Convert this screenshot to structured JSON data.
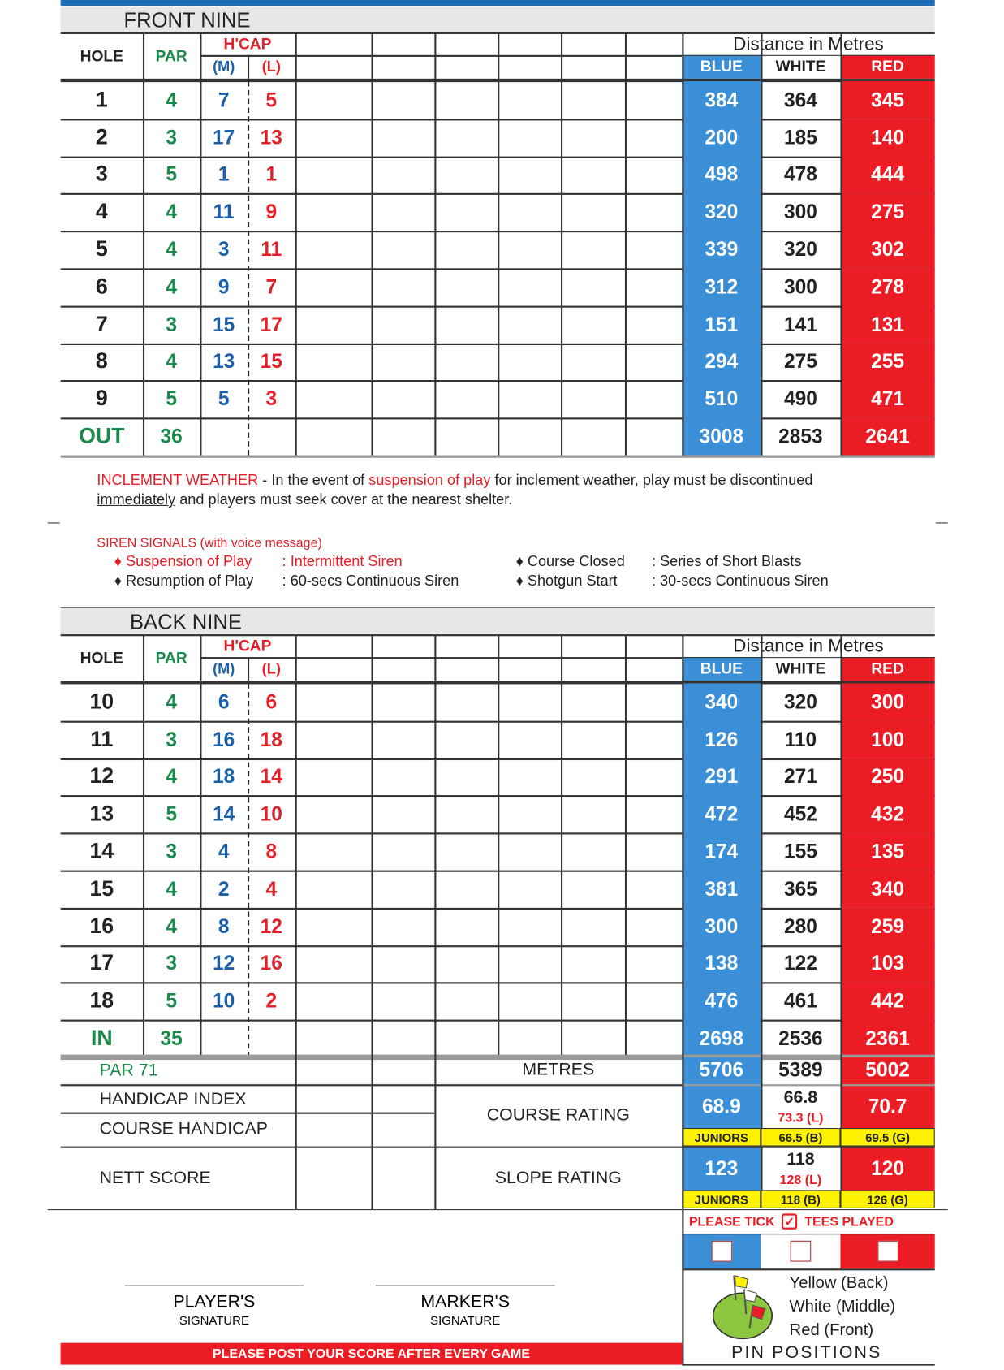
{
  "colors": {
    "blue": "#3a8fd6",
    "red": "#ec1c24",
    "yellow": "#fff200",
    "green": "#1a8a4a",
    "hcap_m": "#1b5fa8",
    "hcap_l": "#e3202a",
    "band": "#e6e7e8",
    "top_bar": "#1a6fb8"
  },
  "headers": {
    "hole": "HOLE",
    "par": "PAR",
    "hcap": "H'CAP",
    "m": "(M)",
    "l": "(L)",
    "distance": "Distance in Metres",
    "blue": "BLUE",
    "white": "WHITE",
    "red": "RED"
  },
  "front": {
    "title": "FRONT NINE",
    "rows": [
      [
        "1",
        "4",
        "7",
        "5",
        "384",
        "364",
        "345"
      ],
      [
        "2",
        "3",
        "17",
        "13",
        "200",
        "185",
        "140"
      ],
      [
        "3",
        "5",
        "1",
        "1",
        "498",
        "478",
        "444"
      ],
      [
        "4",
        "4",
        "11",
        "9",
        "320",
        "300",
        "275"
      ],
      [
        "5",
        "4",
        "3",
        "11",
        "339",
        "320",
        "302"
      ],
      [
        "6",
        "4",
        "9",
        "7",
        "312",
        "300",
        "278"
      ],
      [
        "7",
        "3",
        "15",
        "17",
        "151",
        "141",
        "131"
      ],
      [
        "8",
        "4",
        "13",
        "15",
        "294",
        "275",
        "255"
      ],
      [
        "9",
        "5",
        "5",
        "3",
        "510",
        "490",
        "471"
      ]
    ],
    "total": [
      "OUT",
      "36",
      "",
      "",
      "3008",
      "2853",
      "2641"
    ]
  },
  "weather": {
    "label": "INCLEMENT WEATHER",
    "t1": " - In the event of ",
    "t2": "suspension of play",
    "t3": " for inclement weather, play must be discontinued",
    "t4": "immediately",
    "t5": " and players must seek cover at the nearest shelter."
  },
  "siren": {
    "title": "SIREN SIGNALS (with voice message)",
    "items": [
      {
        "name": "♦ Suspension of Play",
        "desc": ": Intermittent Siren",
        "red": true
      },
      {
        "name": "♦ Resumption of Play",
        "desc": ": 60-secs Continuous Siren",
        "red": false
      },
      {
        "name": "♦ Course Closed",
        "desc": ": Series of Short Blasts",
        "red": false
      },
      {
        "name": "♦ Shotgun Start",
        "desc": ": 30-secs Continuous Siren",
        "red": false
      }
    ]
  },
  "back": {
    "title": "BACK NINE",
    "rows": [
      [
        "10",
        "4",
        "6",
        "6",
        "340",
        "320",
        "300"
      ],
      [
        "11",
        "3",
        "16",
        "18",
        "126",
        "110",
        "100"
      ],
      [
        "12",
        "4",
        "18",
        "14",
        "291",
        "271",
        "250"
      ],
      [
        "13",
        "5",
        "14",
        "10",
        "472",
        "452",
        "432"
      ],
      [
        "14",
        "3",
        "4",
        "8",
        "174",
        "155",
        "135"
      ],
      [
        "15",
        "4",
        "2",
        "4",
        "381",
        "365",
        "340"
      ],
      [
        "16",
        "4",
        "8",
        "12",
        "300",
        "280",
        "259"
      ],
      [
        "17",
        "3",
        "12",
        "16",
        "138",
        "122",
        "103"
      ],
      [
        "18",
        "5",
        "10",
        "2",
        "476",
        "461",
        "442"
      ]
    ],
    "total": [
      "IN",
      "35",
      "",
      "",
      "2698",
      "2536",
      "2361"
    ]
  },
  "summary": {
    "par": "PAR 71",
    "handicap_index": "HANDICAP INDEX",
    "course_handicap": "COURSE HANDICAP",
    "nett_score": "NETT SCORE",
    "metres": "METRES",
    "course_rating": "COURSE RATING",
    "slope_rating": "SLOPE RATING",
    "metres_values": [
      "5706",
      "5389",
      "5002"
    ],
    "rating": {
      "blue": "68.9",
      "white": "66.8",
      "white_l": "73.3 (L)",
      "red": "70.7"
    },
    "rating_juniors": [
      "JUNIORS",
      "66.5 (B)",
      "69.5 (G)"
    ],
    "slope": {
      "blue": "123",
      "white": "118",
      "white_l": "128 (L)",
      "red": "120"
    },
    "slope_juniors": [
      "JUNIORS",
      "118 (B)",
      "126 (G)"
    ]
  },
  "tees": {
    "please_tick": "PLEASE TICK",
    "tees_played": "TEES PLAYED"
  },
  "pins": {
    "yellow": "Yellow (Back)",
    "white": "White (Middle)",
    "red": "Red (Front)",
    "title": "PIN POSITIONS"
  },
  "signatures": {
    "player": "PLAYER'S",
    "marker": "MARKER'S",
    "sub": "SIGNATURE"
  },
  "footer": "PLEASE POST YOUR SCORE AFTER EVERY GAME"
}
